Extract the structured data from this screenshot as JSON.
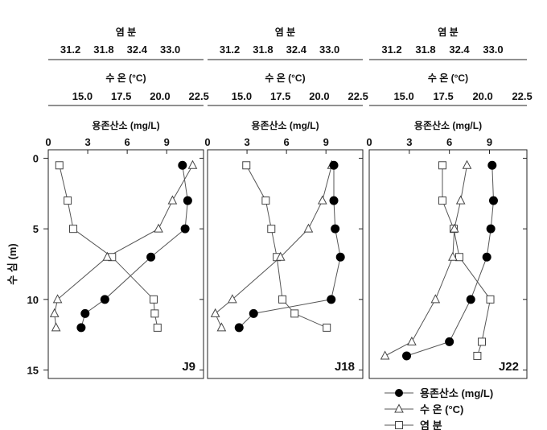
{
  "y_axis": {
    "label": "수 심 (m)",
    "ticks": [
      "0",
      "5",
      "10",
      "15"
    ],
    "range": [
      -0.6,
      15.6
    ],
    "inverted": true
  },
  "axes": {
    "salinity": {
      "label": "염 분",
      "ticks": [
        "31.2",
        "31.8",
        "32.4",
        "33.0"
      ],
      "range": [
        30.8,
        33.6
      ]
    },
    "temperature": {
      "label": "수 온 (°C)",
      "ticks": [
        "15.0",
        "17.5",
        "20.0",
        "22.5"
      ],
      "range": [
        12.8,
        22.8
      ]
    },
    "oxygen": {
      "label": "용존산소 (mg/L)",
      "ticks": [
        "0",
        "3",
        "6",
        "9"
      ],
      "range": [
        0,
        11.8
      ]
    }
  },
  "legend": [
    {
      "series": "oxygen",
      "label": "용존산소 (mg/L)",
      "marker": "circle-filled"
    },
    {
      "series": "temperature",
      "label": "수 온 (°C)",
      "marker": "triangle-open"
    },
    {
      "series": "salinity",
      "label": "염 분",
      "marker": "square-open"
    }
  ],
  "colors": {
    "line": "#555555",
    "marker_fill": "#000000",
    "marker_open": "#ffffff",
    "axis": "#222222"
  },
  "chart_data": [
    {
      "type": "scatter",
      "station": "J9",
      "series": [
        {
          "name": "용존산소 (mg/L)",
          "key": "oxygen",
          "points": [
            [
              10.2,
              0.5
            ],
            [
              10.6,
              3
            ],
            [
              10.4,
              5
            ],
            [
              7.8,
              7
            ],
            [
              4.3,
              10
            ],
            [
              2.8,
              11
            ],
            [
              2.5,
              12
            ]
          ]
        },
        {
          "name": "수 온 (°C)",
          "key": "temperature",
          "points": [
            [
              22.1,
              0.5
            ],
            [
              20.8,
              3
            ],
            [
              19.9,
              5
            ],
            [
              16.6,
              7
            ],
            [
              13.4,
              10
            ],
            [
              13.2,
              11
            ],
            [
              13.3,
              12
            ]
          ]
        },
        {
          "name": "염 분",
          "key": "salinity",
          "points": [
            [
              31.0,
              0.5
            ],
            [
              31.15,
              3
            ],
            [
              31.25,
              5
            ],
            [
              31.95,
              7
            ],
            [
              32.7,
              10
            ],
            [
              32.72,
              11
            ],
            [
              32.77,
              12
            ]
          ]
        }
      ]
    },
    {
      "type": "scatter",
      "station": "J18",
      "series": [
        {
          "name": "용존산소 (mg/L)",
          "key": "oxygen",
          "points": [
            [
              9.6,
              0.5
            ],
            [
              9.6,
              3
            ],
            [
              9.7,
              5
            ],
            [
              10.1,
              7
            ],
            [
              9.4,
              10
            ],
            [
              3.5,
              11
            ],
            [
              2.4,
              12
            ]
          ]
        },
        {
          "name": "수 온 (°C)",
          "key": "temperature",
          "points": [
            [
              20.8,
              0.5
            ],
            [
              20.2,
              3
            ],
            [
              19.3,
              5
            ],
            [
              17.5,
              7
            ],
            [
              14.4,
              10
            ],
            [
              13.3,
              11
            ],
            [
              13.7,
              12
            ]
          ]
        },
        {
          "name": "염 분",
          "key": "salinity",
          "points": [
            [
              31.5,
              0.5
            ],
            [
              31.85,
              3
            ],
            [
              31.95,
              5
            ],
            [
              32.05,
              7
            ],
            [
              32.15,
              10
            ],
            [
              32.37,
              11
            ],
            [
              32.95,
              12
            ]
          ]
        }
      ]
    },
    {
      "type": "scatter",
      "station": "J22",
      "series": [
        {
          "name": "용존산소 (mg/L)",
          "key": "oxygen",
          "points": [
            [
              9.2,
              0.5
            ],
            [
              9.3,
              3
            ],
            [
              9.1,
              5
            ],
            [
              8.8,
              7
            ],
            [
              7.6,
              10
            ],
            [
              6.0,
              13
            ],
            [
              2.8,
              14
            ]
          ]
        },
        {
          "name": "수 온 (°C)",
          "key": "temperature",
          "points": [
            [
              19.0,
              0.5
            ],
            [
              18.6,
              3
            ],
            [
              18.2,
              5
            ],
            [
              18.1,
              7
            ],
            [
              17.0,
              10
            ],
            [
              15.5,
              13
            ],
            [
              13.8,
              14
            ]
          ]
        },
        {
          "name": "염 분",
          "key": "salinity",
          "points": [
            [
              32.1,
              0.5
            ],
            [
              32.1,
              3
            ],
            [
              32.3,
              5
            ],
            [
              32.4,
              7
            ],
            [
              32.95,
              10
            ],
            [
              32.8,
              13
            ],
            [
              32.72,
              14
            ]
          ]
        }
      ]
    }
  ]
}
